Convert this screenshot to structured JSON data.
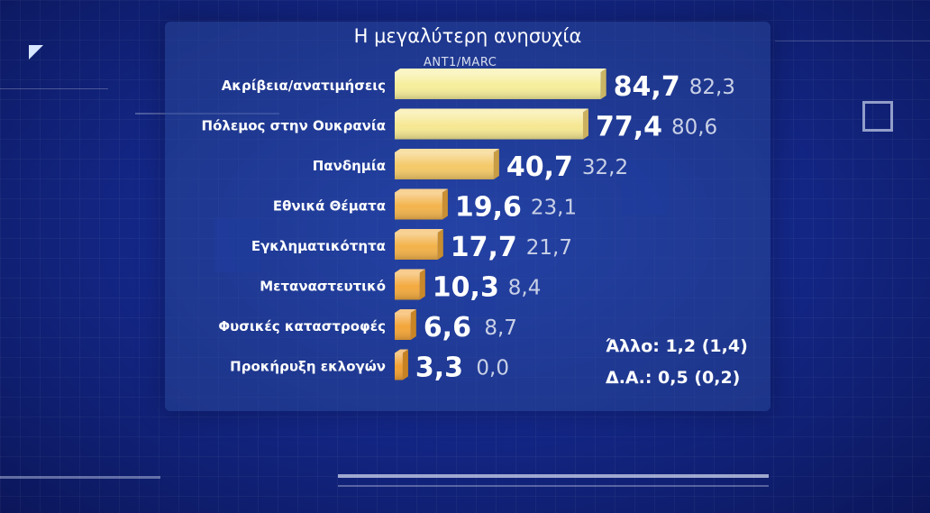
{
  "chart_data": {
    "type": "bar",
    "orientation": "horizontal",
    "title": "Η μεγαλύτερη ανησυχία",
    "subtitle": "ANT1/MARC",
    "categories": [
      "Ακρίβεια/ανατιμήσεις",
      "Πόλεμος στην Ουκρανία",
      "Πανδημία",
      "Εθνικά Θέματα",
      "Εγκληματικότητα",
      "Μεταναστευτικό",
      "Φυσικές καταστροφές",
      "Προκήρυξη εκλογών"
    ],
    "values": [
      84.7,
      77.4,
      40.7,
      19.6,
      17.7,
      10.3,
      6.6,
      3.3
    ],
    "values_label": [
      "84,7",
      "77,4",
      "40,7",
      "19,6",
      "17,7",
      "10,3",
      "6,6",
      "3,3"
    ],
    "previous_values": [
      82.3,
      80.6,
      32.2,
      23.1,
      21.7,
      8.4,
      8.7,
      0.0
    ],
    "previous_label": [
      "82,3",
      "80,6",
      "32,2",
      "23,1",
      "21,7",
      "8,4",
      "8,7",
      "0,0"
    ],
    "annotations": [
      "Άλλο: 1,2 (1,4)",
      "Δ.Α.: 0,5 (0,2)"
    ],
    "xlim": [
      0,
      100
    ],
    "grid": false,
    "colors": {
      "bar_high": "#f6ee9a",
      "bar_low": "#f29a2a",
      "value": "#ffffff",
      "previous": "#c9d0e6",
      "label": "#ffffff"
    }
  }
}
